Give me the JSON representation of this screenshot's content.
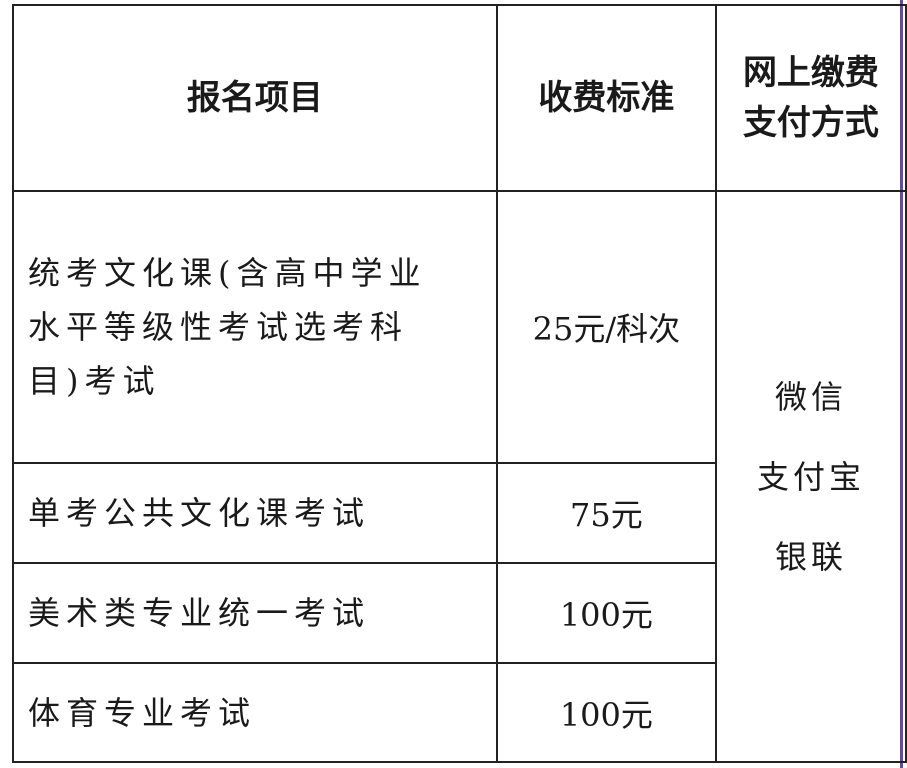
{
  "table": {
    "headers": [
      "报名项目",
      "收费标准",
      "网上缴费支付方式"
    ],
    "header_col3_lines": [
      "网上缴费",
      "支付方式"
    ],
    "rows": [
      {
        "item_lines": [
          "统考文化课(含高中学业",
          "水平等级性考试选考科",
          "目)考试"
        ],
        "fee": "25元/科次"
      },
      {
        "item_lines": [
          "单考公共文化课考试"
        ],
        "fee": "75元"
      },
      {
        "item_lines": [
          "美术类专业统一考试"
        ],
        "fee": "100元"
      },
      {
        "item_lines": [
          "体育专业考试"
        ],
        "fee": "100元"
      }
    ],
    "payment_methods": [
      "微信",
      "支付宝",
      "银联"
    ]
  }
}
